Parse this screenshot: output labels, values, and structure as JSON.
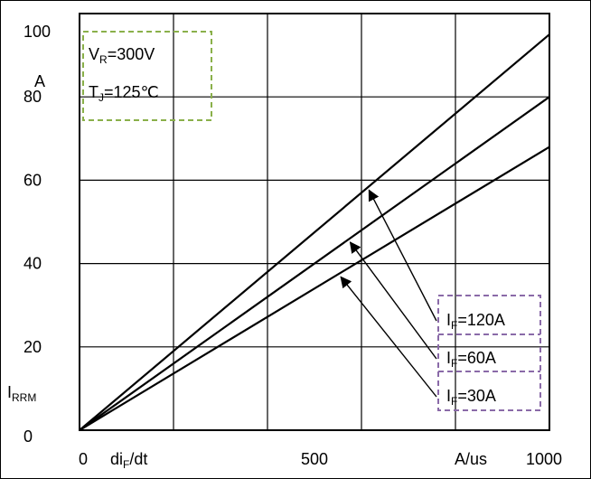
{
  "chart_data": {
    "type": "line",
    "x_range": [
      0,
      1000
    ],
    "y_range": [
      0,
      100
    ],
    "x_ticks": [
      {
        "value": 0,
        "label": "0"
      },
      {
        "value": 500,
        "label": "500"
      },
      {
        "value": 1000,
        "label": "1000"
      }
    ],
    "y_ticks": [
      {
        "value": 0,
        "label": "0"
      },
      {
        "value": 20,
        "label": "20"
      },
      {
        "value": 40,
        "label": "40"
      },
      {
        "value": 60,
        "label": "60"
      },
      {
        "value": 80,
        "label": "80"
      },
      {
        "value": 100,
        "label": "100"
      }
    ],
    "x_label": {
      "main": "di",
      "sub": "F",
      "tail": "/dt"
    },
    "x_unit": "A/us",
    "y_label": {
      "main": "I",
      "sub": "RRM"
    },
    "y_unit": "A",
    "grid": true,
    "conditions": [
      {
        "main": "V",
        "sub": "R",
        "tail": "=300V"
      },
      {
        "main": "T",
        "sub": "J",
        "tail": "=125℃"
      }
    ],
    "series": [
      {
        "name": "IF=120A",
        "label": {
          "main": "I",
          "sub": "F",
          "tail": "=120A"
        },
        "x": [
          0,
          1000
        ],
        "y": [
          0,
          95
        ],
        "arrow_at_x": 620
      },
      {
        "name": "IF=60A",
        "label": {
          "main": "I",
          "sub": "F",
          "tail": "=60A"
        },
        "x": [
          0,
          1000
        ],
        "y": [
          0,
          80
        ],
        "arrow_at_x": 580
      },
      {
        "name": "IF=30A",
        "label": {
          "main": "I",
          "sub": "F",
          "tail": "=30A"
        },
        "x": [
          0,
          1000
        ],
        "y": [
          0,
          68
        ],
        "arrow_at_x": 560
      }
    ],
    "colors": {
      "axis": "#000000",
      "line": "#000000",
      "conditions_box": "#8ab04a",
      "legend_box": "#8a6aa8"
    }
  }
}
